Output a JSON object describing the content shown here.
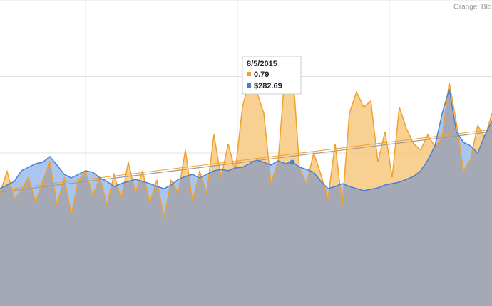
{
  "chart_data": {
    "type": "area",
    "note": "Orange: Bloc",
    "categories": [
      null,
      null,
      null,
      null,
      null,
      null,
      null,
      null,
      null,
      null,
      null,
      null,
      null,
      null,
      null,
      null,
      null,
      null,
      null,
      null,
      null,
      null,
      null,
      null,
      null,
      null,
      null,
      null,
      null,
      null,
      null,
      null,
      null,
      null,
      null,
      null,
      null,
      null,
      null,
      null,
      null,
      null,
      null,
      null,
      null,
      null,
      null,
      null,
      null,
      null,
      null,
      null,
      null,
      null,
      null,
      null,
      null,
      null,
      null,
      null,
      null,
      null,
      null,
      null,
      null,
      null,
      null,
      null,
      null,
      null
    ],
    "series": [
      {
        "color": "#f0a030",
        "values": [
          0.37,
          0.44,
          0.35,
          0.38,
          0.42,
          0.34,
          0.41,
          0.47,
          0.33,
          0.42,
          0.3,
          0.41,
          0.44,
          0.36,
          0.42,
          0.33,
          0.43,
          0.35,
          0.47,
          0.37,
          0.44,
          0.34,
          0.41,
          0.29,
          0.41,
          0.37,
          0.51,
          0.34,
          0.44,
          0.37,
          0.56,
          0.42,
          0.53,
          0.44,
          0.65,
          0.74,
          0.7,
          0.63,
          0.4,
          0.47,
          0.77,
          0.79,
          0.45,
          0.4,
          0.5,
          0.43,
          0.35,
          0.53,
          0.33,
          0.63,
          0.7,
          0.65,
          0.67,
          0.47,
          0.57,
          0.42,
          0.65,
          0.58,
          0.53,
          0.51,
          0.56,
          0.52,
          0.55,
          0.73,
          0.6,
          0.44,
          0.48,
          0.59,
          0.55,
          0.63
        ]
      },
      {
        "color": "#4a7fd4",
        "axis": "y2",
        "values": [
          230.2,
          237.2,
          244.2,
          265.1,
          272.1,
          279.1,
          281.9,
          293.0,
          276.3,
          258.1,
          251.2,
          258.1,
          265.1,
          262.3,
          251.2,
          244.2,
          234.4,
          240.0,
          244.2,
          248.4,
          244.2,
          240.0,
          234.4,
          230.2,
          237.2,
          248.4,
          253.9,
          258.1,
          251.2,
          258.1,
          265.1,
          267.9,
          265.1,
          270.7,
          272.1,
          279.1,
          286.0,
          281.9,
          276.3,
          284.6,
          279.1,
          282.69,
          272.1,
          267.9,
          262.3,
          244.2,
          230.2,
          234.4,
          240.0,
          234.4,
          230.2,
          226.0,
          228.8,
          231.6,
          237.2,
          240.0,
          242.8,
          248.4,
          253.9,
          265.1,
          286.0,
          313.9,
          376.7,
          425.6,
          341.9,
          320.9,
          313.9,
          300.0,
          334.9,
          362.8
        ]
      }
    ],
    "ylim": [
      0,
      1
    ],
    "yticks": [
      0.25,
      0.5,
      0.75,
      1
    ],
    "y2lim": [
      0,
      600
    ],
    "grid": true,
    "tooltip": {
      "title": "8/5/2015",
      "lines": [
        "0.79",
        "$282.69"
      ]
    }
  }
}
